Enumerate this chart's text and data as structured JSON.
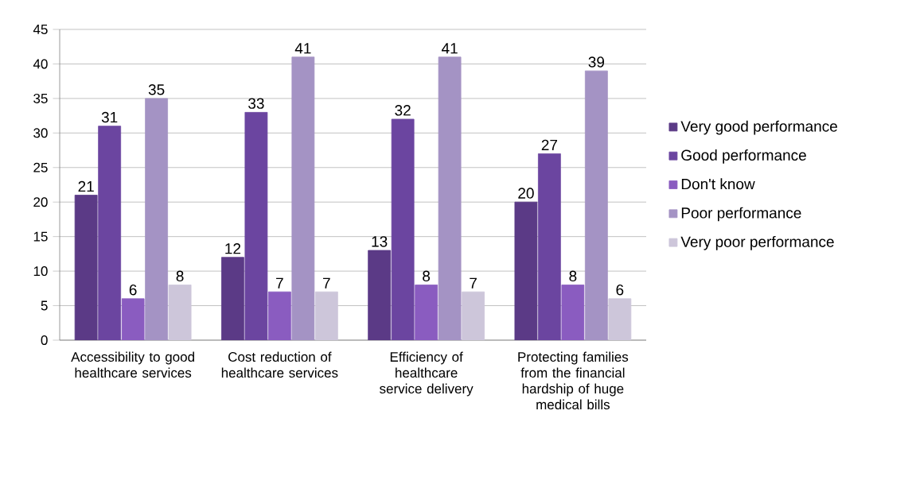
{
  "chart_data": {
    "type": "bar",
    "categories": [
      "Accessibility to good healthcare services",
      "Cost reduction of healthcare services",
      "Efficiency of healthcare service delivery",
      "Protecting families from the financial hardship of huge medical bills"
    ],
    "series": [
      {
        "name": "Very good performance",
        "color": "#5b3a86",
        "values": [
          21,
          12,
          13,
          20
        ]
      },
      {
        "name": "Good performance",
        "color": "#6b45a0",
        "values": [
          31,
          33,
          32,
          27
        ]
      },
      {
        "name": "Don't know",
        "color": "#8a5cc0",
        "values": [
          6,
          7,
          8,
          8
        ]
      },
      {
        "name": "Poor performance",
        "color": "#a493c4",
        "values": [
          35,
          41,
          41,
          39
        ]
      },
      {
        "name": "Very poor performance",
        "color": "#cdc6da",
        "values": [
          8,
          7,
          7,
          6
        ]
      }
    ],
    "ylim": [
      0,
      45
    ],
    "yticks": [
      0,
      5,
      10,
      15,
      20,
      25,
      30,
      35,
      40,
      45
    ],
    "grid": "y",
    "legend": "right",
    "data_labels": true
  }
}
